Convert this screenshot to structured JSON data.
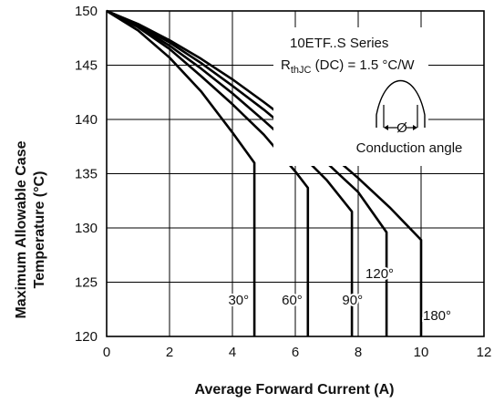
{
  "chart_data": {
    "type": "line",
    "xlabel": "Average Forward Current (A)",
    "ylabel": [
      "Maximum Allowable Case",
      "Temperature (°C)"
    ],
    "xlim": [
      0,
      12
    ],
    "ylim": [
      120,
      150
    ],
    "xticks": [
      "0",
      "2",
      "4",
      "6",
      "8",
      "10",
      "12"
    ],
    "yticks": [
      "120",
      "125",
      "130",
      "135",
      "140",
      "145",
      "150"
    ],
    "grid": true,
    "annotation": {
      "series_title": "10ETF..S Series",
      "rth_prefix": "R",
      "rth_sub": "thJC",
      "rth_suffix": " (DC) = 1.5 °C/W",
      "phi_label": "Ø",
      "conduction_label": "Conduction angle"
    },
    "series": [
      {
        "name": "30°",
        "label": "30°",
        "x": [
          0,
          1,
          2,
          3,
          4,
          4.7,
          4.7
        ],
        "y": [
          150,
          148.2,
          145.7,
          142.6,
          138.8,
          136,
          120
        ]
      },
      {
        "name": "60°",
        "label": "60°",
        "x": [
          0,
          1,
          2,
          3,
          4,
          5,
          6,
          6.4,
          6.4
        ],
        "y": [
          150,
          148.5,
          146.5,
          144,
          141.4,
          138.6,
          135.2,
          133.7,
          120
        ]
      },
      {
        "name": "90°",
        "label": "90°",
        "x": [
          0,
          1,
          2,
          3,
          4,
          5,
          6,
          7,
          7.8,
          7.8
        ],
        "y": [
          150,
          148.6,
          146.8,
          144.7,
          142.4,
          139.9,
          137.3,
          134.4,
          131.5,
          120
        ]
      },
      {
        "name": "120°",
        "label": "120°",
        "x": [
          0,
          1,
          2,
          3,
          4,
          5,
          6,
          7,
          8,
          8.9,
          8.9
        ],
        "y": [
          150,
          148.7,
          147.1,
          145.2,
          143.1,
          140.9,
          138.5,
          136,
          133.3,
          129.6,
          120
        ]
      },
      {
        "name": "180°",
        "label": "180°",
        "x": [
          0,
          1,
          2,
          3,
          4,
          5,
          6,
          7,
          8,
          9,
          10,
          10,
          10
        ],
        "y": [
          150,
          148.8,
          147.3,
          145.6,
          143.7,
          141.6,
          139.4,
          137.1,
          134.6,
          131.9,
          128.9,
          127.8,
          120
        ]
      }
    ]
  }
}
